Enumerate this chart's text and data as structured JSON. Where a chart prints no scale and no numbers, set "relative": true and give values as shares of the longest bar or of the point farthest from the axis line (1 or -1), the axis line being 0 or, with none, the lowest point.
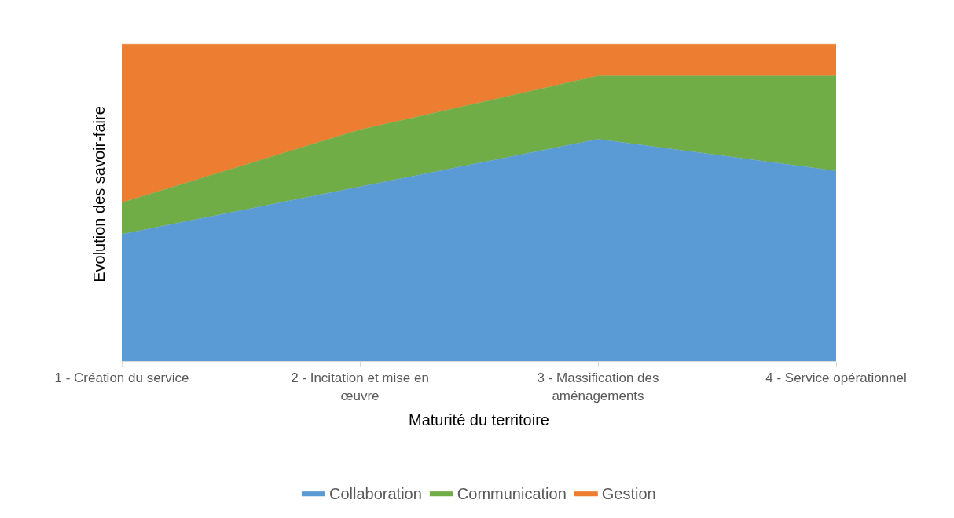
{
  "chart_data": {
    "type": "area",
    "stacked": true,
    "relative": true,
    "xlabel": "Maturité du territoire",
    "ylabel": "Evolution des savoir-faire",
    "categories": [
      "1 - Création du service",
      "2 - Incitation et mise en œuvre",
      "3 - Massification des aménagements",
      "4 - Service opérationnel"
    ],
    "series": [
      {
        "name": "Collaboration",
        "color": "#5b9bd5",
        "values": [
          0.4,
          0.55,
          0.7,
          0.6
        ]
      },
      {
        "name": "Communication",
        "color": "#70ad47",
        "values": [
          0.1,
          0.18,
          0.2,
          0.3
        ]
      },
      {
        "name": "Gestion",
        "color": "#ed7d31",
        "values": [
          0.5,
          0.27,
          0.1,
          0.1
        ]
      }
    ],
    "legend": "bottom"
  }
}
